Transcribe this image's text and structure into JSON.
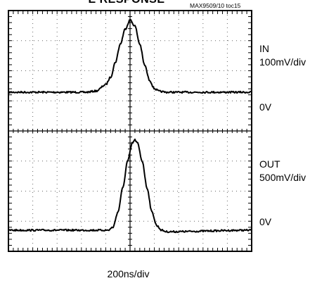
{
  "header": {
    "title": "E RESPONSE",
    "figure_id": "MAX9509/10 toc15"
  },
  "labels": {
    "in_name": "IN",
    "in_scale": "100mV/div",
    "in_zero": "0V",
    "out_name": "OUT",
    "out_scale": "500mV/div",
    "out_zero": "0V",
    "time_scale": "200ns/div"
  },
  "chart_data": {
    "type": "line",
    "title": "E RESPONSE",
    "xlabel": "200ns/div",
    "x_divisions": 10,
    "y_divisions": 8,
    "grid": true,
    "series": [
      {
        "name": "IN",
        "scale": "100mV/div",
        "x": [
          0,
          3.2,
          3.6,
          4.0,
          4.2,
          4.4,
          4.6,
          4.8,
          5.0,
          5.2,
          5.4,
          5.6,
          5.8,
          6.0,
          6.2,
          6.5,
          10
        ],
        "y": [
          0,
          0,
          0.04,
          0.25,
          0.5,
          1.0,
          1.6,
          2.1,
          2.4,
          2.2,
          1.6,
          0.9,
          0.4,
          0.12,
          0.03,
          0,
          0
        ]
      },
      {
        "name": "OUT",
        "scale": "500mV/div",
        "x": [
          0,
          4.1,
          4.3,
          4.5,
          4.7,
          4.9,
          5.1,
          5.2,
          5.3,
          5.5,
          5.7,
          5.9,
          6.1,
          6.3,
          6.5,
          10
        ],
        "y": [
          0,
          0,
          0.1,
          0.6,
          1.4,
          2.3,
          2.9,
          3.0,
          2.9,
          2.3,
          1.4,
          0.6,
          0.15,
          0,
          -0.05,
          0
        ]
      }
    ]
  }
}
